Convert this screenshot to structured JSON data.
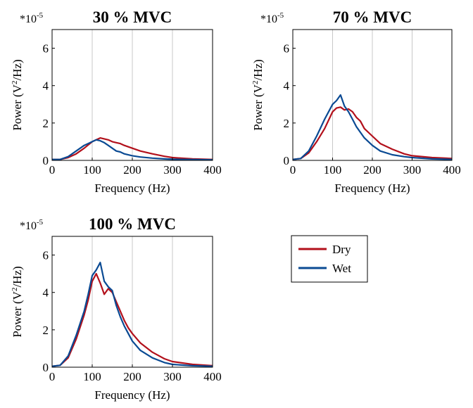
{
  "colors": {
    "Dry": "#b2101b",
    "Wet": "#0a4a93"
  },
  "legend": {
    "items": [
      "Dry",
      "Wet"
    ]
  },
  "chart_data": [
    {
      "type": "line",
      "title": "30 % MVC",
      "xlabel": "Frequency (Hz)",
      "ylabel_main": "Power (V",
      "ylabel_sup": "2",
      "ylabel_tail": "/Hz)",
      "scale_base": "*10",
      "scale_exp": "-5",
      "xlim": [
        0,
        400
      ],
      "ylim": [
        0,
        7
      ],
      "xticks": [
        0,
        100,
        200,
        300,
        400
      ],
      "yticks": [
        0,
        2,
        4,
        6
      ],
      "grid": "vertical",
      "series": [
        {
          "name": "Dry",
          "x": [
            0,
            20,
            40,
            60,
            80,
            100,
            110,
            120,
            130,
            140,
            150,
            160,
            170,
            180,
            200,
            220,
            250,
            280,
            300,
            350,
            400
          ],
          "y": [
            0.05,
            0.05,
            0.15,
            0.35,
            0.65,
            1.0,
            1.1,
            1.2,
            1.15,
            1.1,
            1.0,
            0.95,
            0.9,
            0.8,
            0.65,
            0.5,
            0.35,
            0.22,
            0.15,
            0.08,
            0.05
          ]
        },
        {
          "name": "Wet",
          "x": [
            0,
            20,
            40,
            60,
            80,
            100,
            110,
            120,
            130,
            140,
            150,
            160,
            170,
            180,
            200,
            220,
            250,
            280,
            300,
            350,
            400
          ],
          "y": [
            0.05,
            0.05,
            0.2,
            0.5,
            0.8,
            1.0,
            1.1,
            1.05,
            0.95,
            0.8,
            0.65,
            0.5,
            0.45,
            0.35,
            0.25,
            0.18,
            0.12,
            0.08,
            0.06,
            0.04,
            0.03
          ]
        }
      ]
    },
    {
      "type": "line",
      "title": "70 % MVC",
      "xlabel": "Frequency (Hz)",
      "ylabel_main": "Power (V",
      "ylabel_sup": "2",
      "ylabel_tail": "/Hz)",
      "scale_base": "*10",
      "scale_exp": "-5",
      "xlim": [
        0,
        400
      ],
      "ylim": [
        0,
        7
      ],
      "xticks": [
        0,
        100,
        200,
        300,
        400
      ],
      "yticks": [
        0,
        2,
        4,
        6
      ],
      "grid": "vertical",
      "series": [
        {
          "name": "Dry",
          "x": [
            0,
            20,
            40,
            60,
            80,
            100,
            110,
            120,
            130,
            140,
            150,
            160,
            170,
            180,
            200,
            220,
            250,
            280,
            300,
            350,
            400
          ],
          "y": [
            0.05,
            0.1,
            0.4,
            1.0,
            1.7,
            2.6,
            2.8,
            2.85,
            2.7,
            2.75,
            2.6,
            2.3,
            2.1,
            1.7,
            1.3,
            0.9,
            0.6,
            0.35,
            0.25,
            0.15,
            0.1
          ]
        },
        {
          "name": "Wet",
          "x": [
            0,
            20,
            40,
            60,
            80,
            100,
            110,
            120,
            130,
            140,
            150,
            160,
            170,
            180,
            200,
            220,
            250,
            280,
            300,
            350,
            400
          ],
          "y": [
            0.05,
            0.1,
            0.5,
            1.3,
            2.2,
            3.0,
            3.2,
            3.5,
            2.9,
            2.6,
            2.2,
            1.8,
            1.5,
            1.2,
            0.8,
            0.5,
            0.3,
            0.2,
            0.15,
            0.08,
            0.05
          ]
        }
      ]
    },
    {
      "type": "line",
      "title": "100 % MVC",
      "xlabel": "Frequency (Hz)",
      "ylabel_main": "Power (V",
      "ylabel_sup": "2",
      "ylabel_tail": "/Hz)",
      "scale_base": "*10",
      "scale_exp": "-5",
      "xlim": [
        0,
        400
      ],
      "ylim": [
        0,
        7
      ],
      "xticks": [
        0,
        100,
        200,
        300,
        400
      ],
      "yticks": [
        0,
        2,
        4,
        6
      ],
      "grid": "vertical",
      "series": [
        {
          "name": "Dry",
          "x": [
            0,
            20,
            40,
            60,
            80,
            90,
            100,
            110,
            120,
            130,
            140,
            150,
            160,
            170,
            180,
            190,
            200,
            220,
            250,
            280,
            300,
            350,
            400
          ],
          "y": [
            0.05,
            0.1,
            0.5,
            1.5,
            2.8,
            3.6,
            4.6,
            5.0,
            4.5,
            3.9,
            4.2,
            4.0,
            3.5,
            3.0,
            2.5,
            2.1,
            1.8,
            1.3,
            0.8,
            0.45,
            0.3,
            0.15,
            0.08
          ]
        },
        {
          "name": "Wet",
          "x": [
            0,
            20,
            40,
            60,
            80,
            90,
            100,
            110,
            120,
            130,
            140,
            150,
            160,
            170,
            180,
            190,
            200,
            220,
            250,
            280,
            300,
            350,
            400
          ],
          "y": [
            0.05,
            0.1,
            0.6,
            1.7,
            3.0,
            3.9,
            4.9,
            5.2,
            5.6,
            4.6,
            4.3,
            4.1,
            3.3,
            2.7,
            2.2,
            1.8,
            1.4,
            0.9,
            0.5,
            0.25,
            0.15,
            0.08,
            0.05
          ]
        }
      ]
    }
  ]
}
